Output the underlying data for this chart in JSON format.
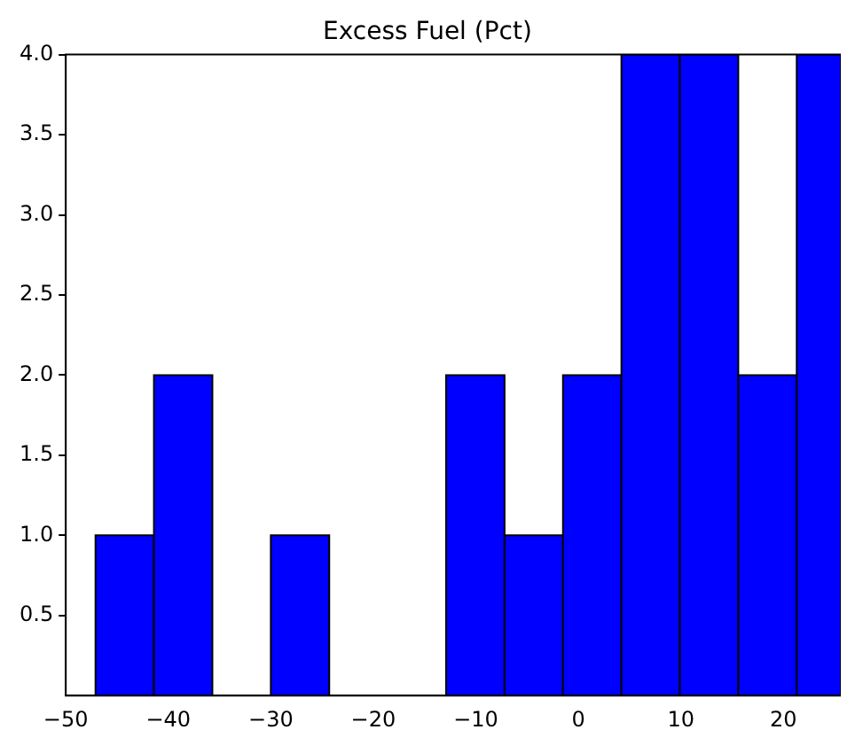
{
  "chart_data": {
    "type": "histogram",
    "title": "Excess Fuel (Pct)",
    "bins": [
      -47.1,
      -41.4,
      -35.7,
      -30.0,
      -24.3,
      -12.9,
      -7.2,
      -1.5,
      4.2,
      9.9,
      15.6,
      21.3,
      25.6
    ],
    "values": [
      1,
      2,
      0,
      1,
      0,
      2,
      1,
      2,
      4,
      4,
      2,
      4
    ],
    "color": "#0000ff",
    "xlim": [
      -50,
      25.6
    ],
    "xticks": [
      -50,
      -40,
      -30,
      -20,
      -10,
      0,
      10,
      20
    ],
    "ylim": [
      0,
      4
    ],
    "yticks": [
      0.5,
      {
        "value": 1,
        "label": "1.0"
      },
      1.5,
      {
        "value": 2,
        "label": "2.0"
      },
      2.5,
      {
        "value": 3,
        "label": "3.0"
      },
      3.5,
      {
        "value": 4,
        "label": "4.0"
      }
    ],
    "grid": false
  }
}
